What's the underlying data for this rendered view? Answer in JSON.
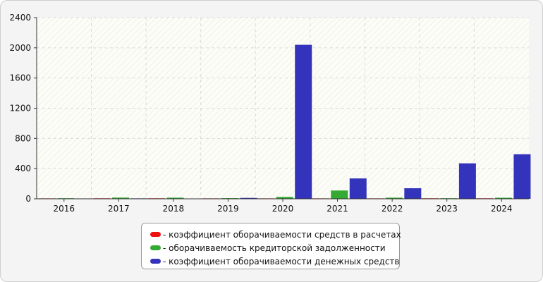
{
  "chart_data": {
    "type": "bar",
    "categories": [
      "2016",
      "2017",
      "2018",
      "2019",
      "2020",
      "2021",
      "2022",
      "2023",
      "2024"
    ],
    "series": [
      {
        "name": "- коэффициент оборачиваемости средств в расчетах",
        "color": "#ee1111",
        "values": [
          6,
          7,
          7,
          6,
          6,
          6,
          6,
          7,
          7
        ]
      },
      {
        "name": "- оборачиваемость кредиторской задолженности",
        "color": "#33aa33",
        "values": [
          8,
          16,
          15,
          9,
          25,
          110,
          15,
          8,
          14
        ]
      },
      {
        "name": "- коэффициент оборачиваемости денежных средств",
        "color": "#3333bb",
        "values": [
          5,
          6,
          4,
          12,
          2040,
          270,
          140,
          470,
          590
        ]
      }
    ],
    "yticks": [
      "0",
      "400",
      "800",
      "1200",
      "1600",
      "2000",
      "2400"
    ],
    "ylim": [
      0,
      2400
    ],
    "grid": true,
    "legend_position": "bottom"
  }
}
